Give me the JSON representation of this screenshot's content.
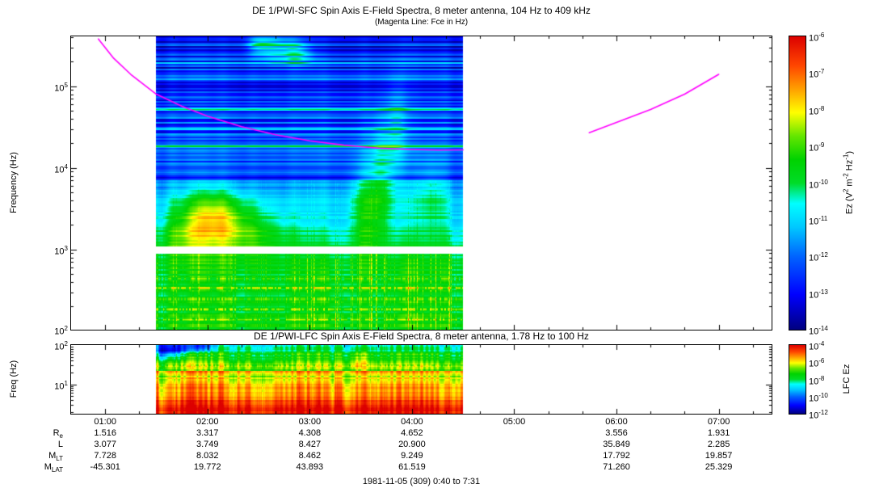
{
  "titles": {
    "sfc": "DE 1/PWI-SFC  Spin Axis E-Field Spectra, 8 meter antenna, 104 Hz to 409 kHz",
    "sfc_subtitle": "(Magenta Line: Fce in Hz)",
    "lfc": "DE 1/PWI-LFC  Spin Axis E-Field Spectra, 8 meter antenna, 1.78 Hz to 100 Hz"
  },
  "footer": "1981-11-05 (309) 0:40 to 7:31",
  "time_axis": {
    "start_label": "0:40",
    "end_label": "7:31",
    "start_min": 40,
    "end_min": 451,
    "ticks": [
      {
        "label": "01:00",
        "min": 60
      },
      {
        "label": "02:00",
        "min": 120
      },
      {
        "label": "03:00",
        "min": 180
      },
      {
        "label": "04:00",
        "min": 240
      },
      {
        "label": "05:00",
        "min": 300
      },
      {
        "label": "06:00",
        "min": 360
      },
      {
        "label": "07:00",
        "min": 420
      }
    ]
  },
  "ephemeris": {
    "rows": [
      {
        "main": "R",
        "sub": "e",
        "values": [
          "1.516",
          "3.317",
          "4.308",
          "4.652",
          "",
          "3.556",
          "1.931"
        ]
      },
      {
        "main": "L",
        "sub": "",
        "values": [
          "3.077",
          "3.749",
          "8.427",
          "20.900",
          "",
          "35.849",
          "2.285"
        ]
      },
      {
        "main": "M",
        "sub": "LT",
        "values": [
          "7.728",
          "8.032",
          "8.462",
          "9.249",
          "",
          "17.792",
          "19.857"
        ]
      },
      {
        "main": "M",
        "sub": "LAT",
        "values": [
          "-45.301",
          "19.772",
          "43.893",
          "61.519",
          "",
          "71.260",
          "25.329"
        ]
      }
    ]
  },
  "colormap": [
    {
      "p": 0.0,
      "c": "#000080"
    },
    {
      "p": 0.12,
      "c": "#0000ff"
    },
    {
      "p": 0.25,
      "c": "#0064ff"
    },
    {
      "p": 0.35,
      "c": "#00c8ff"
    },
    {
      "p": 0.43,
      "c": "#00ffff"
    },
    {
      "p": 0.5,
      "c": "#00dc28"
    },
    {
      "p": 0.58,
      "c": "#00d200"
    },
    {
      "p": 0.66,
      "c": "#64e600"
    },
    {
      "p": 0.74,
      "c": "#ffff00"
    },
    {
      "p": 0.82,
      "c": "#ffa000"
    },
    {
      "p": 0.9,
      "c": "#ff4600"
    },
    {
      "p": 1.0,
      "c": "#dc0000"
    }
  ],
  "chart_data": [
    {
      "id": "sfc",
      "type": "heatmap",
      "title": "DE 1/PWI-SFC  Spin Axis E-Field Spectra, 8 meter antenna, 104 Hz to 409 kHz",
      "subtitle": "(Magenta Line: Fce in Hz)",
      "ylabel": "Frequency (Hz)",
      "yscale": "log",
      "ymin_hz": 104,
      "ymax_hz": 409000,
      "ytick_exponents": [
        5,
        4,
        3,
        2
      ],
      "x_range_min": [
        40,
        451
      ],
      "data_extent_min": [
        90,
        270
      ],
      "value_range_log10": [
        -14,
        -6
      ],
      "colorbar_tick_exponents": [
        -6,
        -7,
        -8,
        -9,
        -10,
        -11,
        -12,
        -13,
        -14
      ],
      "colorbar_label_tokens": [
        {
          "t": "Ez (V"
        },
        {
          "sup": "2"
        },
        {
          "t": " m"
        },
        {
          "sup": "-2"
        },
        {
          "t": " Hz"
        },
        {
          "sup": "-1"
        },
        {
          "t": ")"
        }
      ],
      "fce_line": {
        "label": "Fce",
        "color": "#ff00ff",
        "segments": [
          [
            [
              56,
              380000
            ],
            [
              65,
              220000
            ],
            [
              75,
              140000
            ],
            [
              90,
              80000
            ],
            [
              105,
              57000
            ],
            [
              120,
              43000
            ],
            [
              140,
              32000
            ],
            [
              160,
              25500
            ],
            [
              180,
              21500
            ],
            [
              200,
              19000
            ],
            [
              220,
              17500
            ],
            [
              240,
              16800
            ],
            [
              255,
              16500
            ],
            [
              270,
              16600
            ]
          ],
          [
            [
              344,
              27000
            ],
            [
              360,
              36000
            ],
            [
              380,
              52000
            ],
            [
              400,
              80000
            ],
            [
              420,
              140000
            ]
          ]
        ]
      },
      "bands": [
        {
          "f_lo": 104,
          "f_hi": 880,
          "level_lo": -9.6,
          "level_hi": -9.9,
          "row_noise": 0.45,
          "col_noise": 0.35
        },
        {
          "f_lo": 880,
          "f_hi": 1080,
          "gap": true
        },
        {
          "f_lo": 1080,
          "f_hi": 7000,
          "level_lo": -10.2,
          "level_hi": -11.7,
          "row_noise": 0.35,
          "col_noise": 0.3
        },
        {
          "f_lo": 7000,
          "f_hi": 409001,
          "level_lo": -12.3,
          "level_hi": -12.8,
          "row_noise": 1.0,
          "col_noise": 0.2
        }
      ],
      "stripes": [
        {
          "f": 52000,
          "amp": 1.7,
          "w": 0.035
        },
        {
          "f": 30000,
          "amp": 1.1,
          "w": 0.03
        },
        {
          "f": 18500,
          "amp": 3.4,
          "w": 0.022
        },
        {
          "f": 12500,
          "amp": 0.9,
          "w": 0.03
        },
        {
          "f": 9000,
          "amp": 1.0,
          "w": 0.03
        },
        {
          "f": 70000,
          "amp": 0.9,
          "w": 0.028
        },
        {
          "f": 120000,
          "amp": 0.7,
          "w": 0.04
        },
        {
          "f": 210000,
          "amp": 0.6,
          "w": 0.035
        },
        {
          "f": 437,
          "amp": 1.5,
          "w": 0.03,
          "dotted": true
        },
        {
          "f": 333,
          "amp": 1.6,
          "w": 0.028,
          "dotted": true
        },
        {
          "f": 247,
          "amp": 1.4,
          "w": 0.028,
          "dotted": true
        },
        {
          "f": 184,
          "amp": 1.5,
          "w": 0.028,
          "dotted": true
        },
        {
          "f": 140,
          "amp": 1.3,
          "w": 0.03,
          "dotted": true
        }
      ],
      "blobs": [
        {
          "t": 122,
          "f": 2600,
          "st": 14,
          "sf": 0.22,
          "amp": 2.3
        },
        {
          "t": 138,
          "f": 1600,
          "st": 20,
          "sf": 0.22,
          "amp": 1.4
        },
        {
          "t": 106,
          "f": 1400,
          "st": 10,
          "sf": 0.18,
          "amp": 0.9
        },
        {
          "t": 213,
          "f": 3200,
          "st": 7,
          "sf": 0.4,
          "amp": 1.5
        },
        {
          "t": 222,
          "f": 9000,
          "st": 5,
          "sf": 0.5,
          "amp": 1.5
        },
        {
          "t": 231,
          "f": 28000,
          "st": 4,
          "sf": 0.45,
          "amp": 1.1
        },
        {
          "t": 251,
          "f": 4500,
          "st": 7,
          "sf": 0.35,
          "amp": 0.9
        },
        {
          "t": 160,
          "f": 300000,
          "st": 9,
          "sf": 0.12,
          "amp": 1.9
        },
        {
          "t": 173,
          "f": 255000,
          "st": 6,
          "sf": 0.1,
          "amp": 1.6
        },
        {
          "t": 150,
          "f": 330000,
          "st": 5,
          "sf": 0.08,
          "amp": 1.4
        }
      ]
    },
    {
      "id": "lfc",
      "type": "heatmap",
      "title": "DE 1/PWI-LFC  Spin Axis E-Field Spectra, 8 meter antenna, 1.78 Hz to 100 Hz",
      "ylabel": "Freq (Hz)",
      "yscale": "log",
      "ymin_hz": 1.78,
      "ymax_hz": 100,
      "ytick_exponents": [
        2,
        1
      ],
      "x_range_min": [
        40,
        451
      ],
      "data_extent_min": [
        90,
        270
      ],
      "value_range_log10": [
        -12,
        -4
      ],
      "colorbar_tick_exponents": [
        -4,
        -6,
        -8,
        -10,
        -12
      ],
      "colorbar_label_tokens": [
        {
          "t": "LFC Ez"
        }
      ],
      "bands": [
        {
          "f_lo": 50,
          "f_hi": 100,
          "level_lo": -7.6,
          "level_hi": -8.4,
          "row_noise": 0.45,
          "col_noise": 0.3
        },
        {
          "f_lo": 22,
          "f_hi": 50,
          "level_lo": -6.7,
          "level_hi": -7.4,
          "row_noise": 0.4,
          "col_noise": 0.3
        },
        {
          "f_lo": 9,
          "f_hi": 22,
          "level_lo": -5.8,
          "level_hi": -6.5,
          "row_noise": 0.35,
          "col_noise": 0.25
        },
        {
          "f_lo": 4,
          "f_hi": 9,
          "level_lo": -5.0,
          "level_hi": -5.6,
          "row_noise": 0.3,
          "col_noise": 0.2
        },
        {
          "f_lo": 1.78,
          "f_hi": 4,
          "level_lo": -4.3,
          "level_hi": -4.8,
          "row_noise": 0.25,
          "col_noise": 0.2
        }
      ],
      "stripes": [
        {
          "f": 30,
          "amp": 0.9,
          "w": 0.05,
          "dotted": true
        },
        {
          "f": 55,
          "amp": 0.7,
          "w": 0.04,
          "dotted": true
        },
        {
          "f": 2.4,
          "amp": 0.6,
          "w": 0.07
        }
      ],
      "blobs": [
        {
          "t": 100,
          "f": 82,
          "st": 9,
          "sf": 0.1,
          "amp": -2.6
        },
        {
          "t": 116,
          "f": 90,
          "st": 6,
          "sf": 0.08,
          "amp": -2.2
        },
        {
          "t": 95,
          "f": 60,
          "st": 6,
          "sf": 0.09,
          "amp": -1.2
        },
        {
          "t": 208,
          "f": 40,
          "st": 5,
          "sf": 0.2,
          "amp": 0.9
        }
      ]
    }
  ]
}
